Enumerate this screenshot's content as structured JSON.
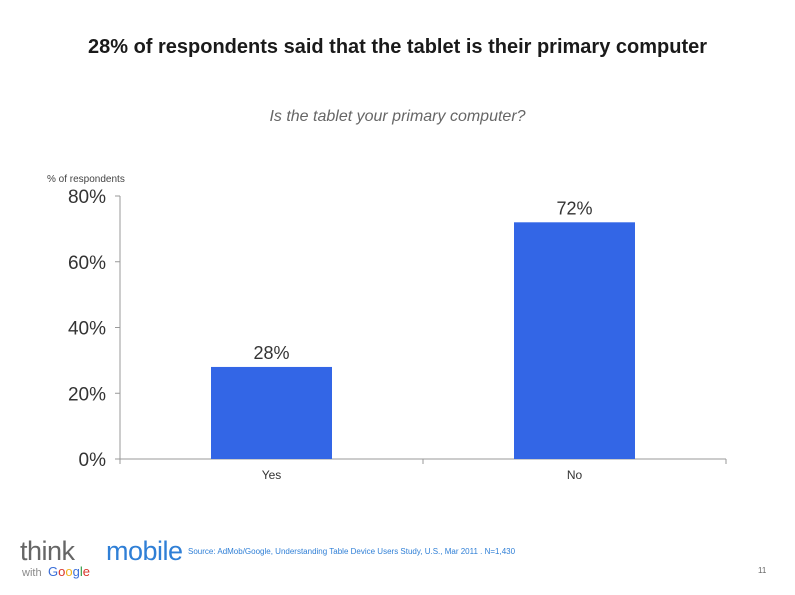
{
  "slide": {
    "title": "28% of respondents said that the tablet is their primary computer",
    "source": "Source: AdMob/Google, Understanding Table Device Users Study, U.S., Mar 2011 . N=1,430",
    "page_number": "11"
  },
  "logo": {
    "think": "think",
    "mobile": "mobile",
    "with": "with",
    "google_letters": [
      "G",
      "o",
      "o",
      "g",
      "l",
      "e"
    ],
    "google_colors": [
      "#3b6fd8",
      "#d9352a",
      "#f2b21b",
      "#3b6fd8",
      "#2f9a44",
      "#d9352a"
    ]
  },
  "chart_data": {
    "type": "bar",
    "title": "Is the tablet your primary computer?",
    "ylabel": "% of respondents",
    "xlabel": "",
    "categories": [
      "Yes",
      "No"
    ],
    "values": [
      28,
      72
    ],
    "data_labels": [
      "28%",
      "72%"
    ],
    "ylim": [
      0,
      80
    ],
    "yticks": [
      0,
      20,
      40,
      60,
      80
    ],
    "ytick_labels": [
      "0%",
      "20%",
      "40%",
      "60%",
      "80%"
    ],
    "bar_color": "#3366e6",
    "axis_color": "#999999",
    "grid": false,
    "legend": "none"
  }
}
